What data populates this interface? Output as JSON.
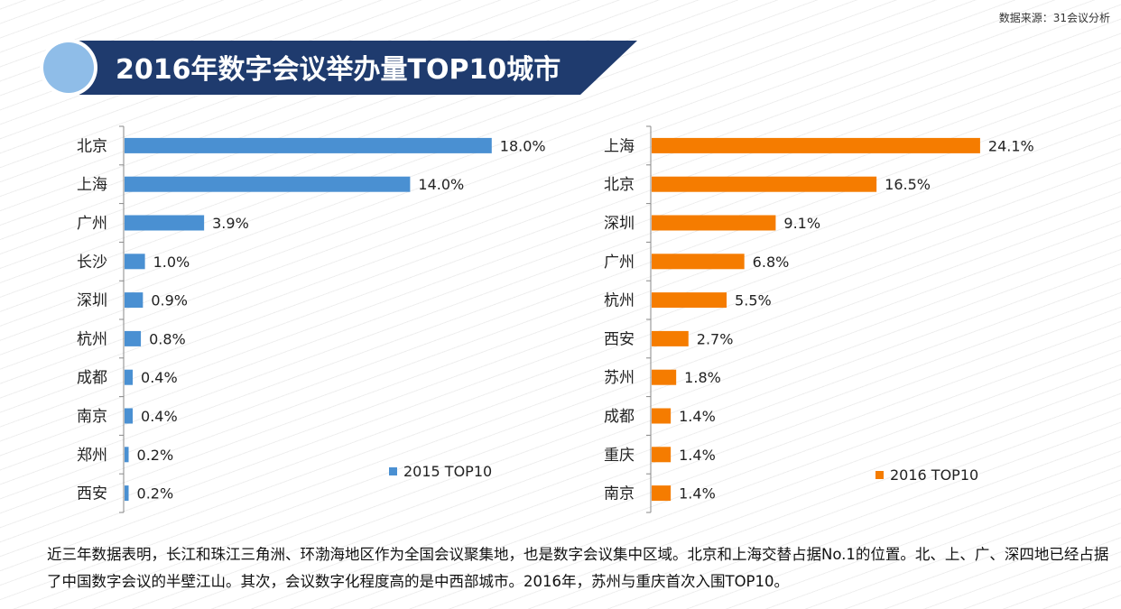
{
  "source_note": "数据来源：31会议分析",
  "title": "2016年数字会议举办量TOP10城市",
  "colors": {
    "banner": "#1f3b6e",
    "circle": "#8fbde8",
    "series2015": "#4a90d2",
    "series2016": "#f57c00"
  },
  "chart_data": [
    {
      "type": "bar",
      "orientation": "horizontal",
      "categories": [
        "北京",
        "上海",
        "广州",
        "长沙",
        "深圳",
        "杭州",
        "成都",
        "南京",
        "郑州",
        "西安"
      ],
      "series": [
        {
          "name": "2015 TOP10",
          "values": [
            18.0,
            14.0,
            3.9,
            1.0,
            0.9,
            0.8,
            0.4,
            0.4,
            0.2,
            0.2
          ]
        }
      ],
      "labels": [
        "18.0%",
        "14.0%",
        "3.9%",
        "1.0%",
        "0.9%",
        "0.8%",
        "0.4%",
        "0.4%",
        "0.2%",
        "0.2%"
      ],
      "unit": "%",
      "legend": "bottom-right"
    },
    {
      "type": "bar",
      "orientation": "horizontal",
      "categories": [
        "上海",
        "北京",
        "深圳",
        "广州",
        "杭州",
        "西安",
        "苏州",
        "成都",
        "重庆",
        "南京"
      ],
      "series": [
        {
          "name": "2016 TOP10",
          "values": [
            24.1,
            16.5,
            9.1,
            6.8,
            5.5,
            2.7,
            1.8,
            1.4,
            1.4,
            1.4
          ]
        }
      ],
      "labels": [
        "24.1%",
        "16.5%",
        "9.1%",
        "6.8%",
        "5.5%",
        "2.7%",
        "1.8%",
        "1.4%",
        "1.4%",
        "1.4%"
      ],
      "unit": "%",
      "legend": "bottom-right"
    }
  ],
  "summary_text": "近三年数据表明，长江和珠江三角洲、环渤海地区作为全国会议聚集地，也是数字会议集中区域。北京和上海交替占据No.1的位置。北、上、广、深四地已经占据了中国数字会议的半壁江山。其次，会议数字化程度高的是中西部城市。2016年，苏州与重庆首次入围TOP10。"
}
